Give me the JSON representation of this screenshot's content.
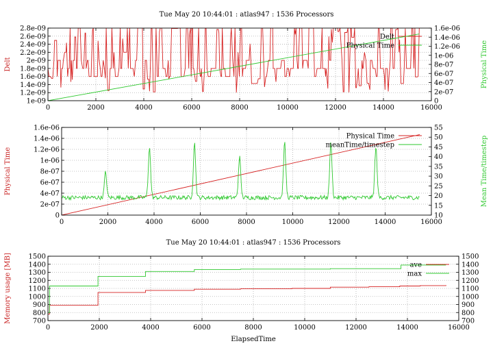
{
  "chart_data": [
    {
      "type": "line",
      "title": "Tue May 20 10:44:01 : atlas947 : 1536 Processors",
      "ylabel": "Delt",
      "y2label": "Physical Time",
      "xlim": [
        0,
        16000
      ],
      "ylim": [
        1e-09,
        2.8e-09
      ],
      "y2lim": [
        0,
        1.6e-06
      ],
      "x_ticks": [
        "0",
        "2000",
        "4000",
        "6000",
        "8000",
        "10000",
        "12000",
        "14000",
        "16000"
      ],
      "y_ticks": [
        "1e-09",
        "1.2e-09",
        "1.4e-09",
        "1.6e-09",
        "1.8e-09",
        "2e-09",
        "2.2e-09",
        "2.4e-09",
        "2.6e-09",
        "2.8e-09"
      ],
      "y2_ticks": [
        "0",
        "2e-07",
        "4e-07",
        "6e-07",
        "8e-07",
        "1e-06",
        "1.2e-06",
        "1.4e-06",
        "1.6e-06"
      ],
      "grid": true,
      "legend": "top-right",
      "series": [
        {
          "name": "Delt",
          "axis": "y",
          "color": "#d62020",
          "x_end": 15500,
          "base": 1.8e-09
        },
        {
          "name": "Physical Time",
          "axis": "y2",
          "color": "#2ec82e",
          "x": [
            0,
            15500
          ],
          "values": [
            0,
            1.47e-06
          ]
        }
      ]
    },
    {
      "type": "line",
      "title": "",
      "ylabel": "Physical Time",
      "y2label": "Mean Time/timestep",
      "xlim": [
        0,
        16000
      ],
      "ylim": [
        0,
        1.6e-06
      ],
      "y2lim": [
        10,
        55
      ],
      "x_ticks": [
        "0",
        "2000",
        "4000",
        "6000",
        "8000",
        "10000",
        "12000",
        "14000",
        "16000"
      ],
      "y_ticks": [
        "0",
        "2e-07",
        "4e-07",
        "6e-07",
        "8e-07",
        "1e-06",
        "1.2e-06",
        "1.4e-06",
        "1.6e-06"
      ],
      "y2_ticks": [
        "10",
        "15",
        "20",
        "25",
        "30",
        "35",
        "40",
        "45",
        "50",
        "55"
      ],
      "grid": true,
      "legend": "top-right",
      "series": [
        {
          "name": "Physical Time",
          "axis": "y",
          "color": "#d62020",
          "x": [
            0,
            15500
          ],
          "values": [
            0,
            1.47e-06
          ]
        },
        {
          "name": "meanTime/timestep",
          "axis": "y2",
          "color": "#2ec82e",
          "x_end": 15500,
          "base": 19,
          "peaks": [
            {
              "x": 1900,
              "y": 32
            },
            {
              "x": 3800,
              "y": 45
            },
            {
              "x": 5750,
              "y": 47
            },
            {
              "x": 7700,
              "y": 40
            },
            {
              "x": 9650,
              "y": 47
            },
            {
              "x": 11650,
              "y": 47
            },
            {
              "x": 13600,
              "y": 45
            }
          ]
        }
      ]
    },
    {
      "type": "line",
      "title": "Tue May 20 10:44:01 : atlas947 : 1536 Processors",
      "xlabel": "ElapsedTime",
      "ylabel": "Memory usage [MB]",
      "xlim": [
        0,
        16000
      ],
      "ylim": [
        700,
        1500
      ],
      "y2lim": [
        700,
        1500
      ],
      "x_ticks": [
        "0",
        "2000",
        "4000",
        "6000",
        "8000",
        "10000",
        "12000",
        "14000",
        "16000"
      ],
      "y_ticks": [
        "700",
        "800",
        "900",
        "1000",
        "1100",
        "1200",
        "1300",
        "1400",
        "1500"
      ],
      "y2_ticks": [
        "700",
        "800",
        "900",
        "1000",
        "1100",
        "1200",
        "1300",
        "1400",
        "1500"
      ],
      "grid": true,
      "legend": "top-right",
      "series": [
        {
          "name": "ave",
          "color": "#d62020",
          "x": [
            0,
            30,
            60,
            150,
            1800,
            1950,
            3700,
            3800,
            5600,
            5700,
            7500,
            9500,
            11000,
            12500,
            13700,
            14500,
            15500
          ],
          "values": [
            780,
            780,
            890,
            890,
            890,
            1050,
            1050,
            1075,
            1075,
            1090,
            1095,
            1100,
            1115,
            1120,
            1130,
            1135,
            1140
          ]
        },
        {
          "name": "max",
          "color": "#2ec82e",
          "x": [
            0,
            30,
            60,
            150,
            1800,
            1950,
            3700,
            3800,
            5600,
            5700,
            7500,
            9500,
            11000,
            13600,
            13750,
            14500,
            15500
          ],
          "values": [
            800,
            800,
            1130,
            1130,
            1130,
            1250,
            1250,
            1310,
            1310,
            1335,
            1340,
            1340,
            1345,
            1345,
            1390,
            1390,
            1390
          ]
        }
      ]
    }
  ]
}
